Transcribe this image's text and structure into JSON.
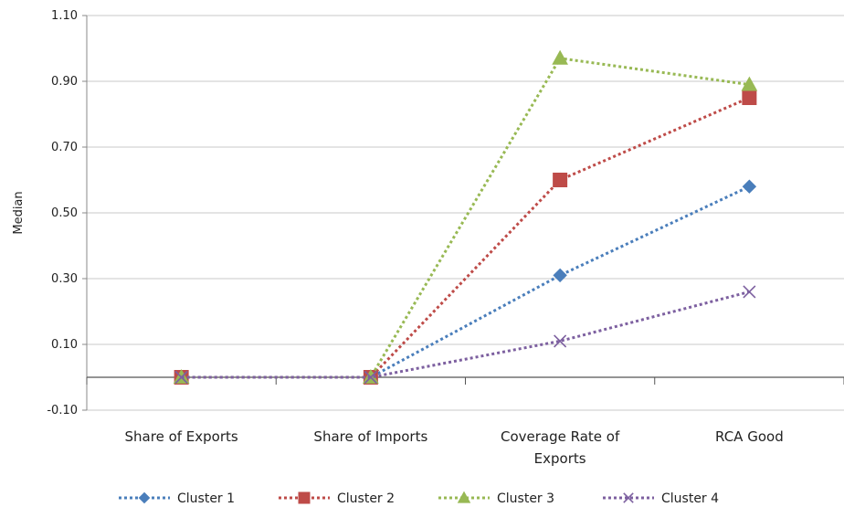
{
  "chart_data": {
    "type": "line",
    "title": "",
    "xlabel": "",
    "ylabel": "Median",
    "ylim": [
      -0.1,
      1.1
    ],
    "y_ticks": [
      "1.10",
      "0.90",
      "0.70",
      "0.50",
      "0.30",
      "0.10",
      "-0.10"
    ],
    "grid": true,
    "legend_position": "bottom",
    "categories": [
      [
        "Share of Exports"
      ],
      [
        "Share of Imports"
      ],
      [
        "Coverage Rate of",
        "Exports"
      ],
      [
        "RCA Good"
      ]
    ],
    "series": [
      {
        "name": "Cluster 1",
        "color": "#4a7ebb",
        "marker": "diamond",
        "values": [
          0.0,
          0.0,
          0.31,
          0.58
        ]
      },
      {
        "name": "Cluster 2",
        "color": "#be4b48",
        "marker": "square",
        "values": [
          0.0,
          0.0,
          0.6,
          0.85
        ]
      },
      {
        "name": "Cluster 3",
        "color": "#98b954",
        "marker": "triangle",
        "values": [
          0.0,
          0.0,
          0.97,
          0.89
        ]
      },
      {
        "name": "Cluster 4",
        "color": "#7d60a0",
        "marker": "x",
        "values": [
          0.0,
          0.0,
          0.11,
          0.26
        ]
      }
    ]
  }
}
